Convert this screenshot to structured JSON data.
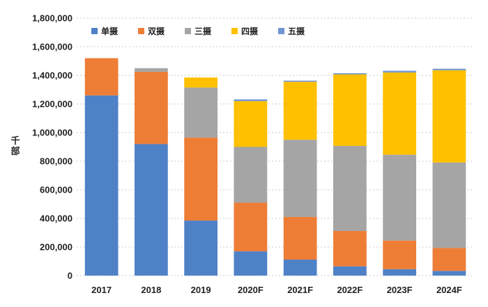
{
  "chart_data": {
    "type": "bar",
    "stacked": true,
    "categories": [
      "2017",
      "2018",
      "2019",
      "2020F",
      "2021F",
      "2022F",
      "2023F",
      "2024F"
    ],
    "series": [
      {
        "name": "单摄",
        "color": "#4f81c7",
        "values": [
          1260000,
          920000,
          385000,
          170000,
          112000,
          65000,
          45000,
          33000
        ]
      },
      {
        "name": "双摄",
        "color": "#ee7d36",
        "values": [
          260000,
          505000,
          580000,
          340000,
          298000,
          247000,
          200000,
          160000
        ]
      },
      {
        "name": "三摄",
        "color": "#a5a5a5",
        "values": [
          0,
          25000,
          350000,
          390000,
          540000,
          595000,
          600000,
          598000
        ]
      },
      {
        "name": "四摄",
        "color": "#ffc000",
        "values": [
          0,
          0,
          70000,
          320000,
          405000,
          500000,
          575000,
          645000
        ]
      },
      {
        "name": "五摄",
        "color": "#6f95d3",
        "values": [
          0,
          0,
          0,
          12000,
          8000,
          8000,
          12000,
          10000
        ]
      }
    ],
    "ylabel": "千部",
    "ylim": [
      0,
      1800000
    ],
    "ytick_step": 200000,
    "yticks": [
      "0",
      "200,000",
      "400,000",
      "600,000",
      "800,000",
      "1,000,000",
      "1,200,000",
      "1,400,000",
      "1,600,000",
      "1,800,000"
    ],
    "grid": true,
    "legend_position": "top-left"
  }
}
